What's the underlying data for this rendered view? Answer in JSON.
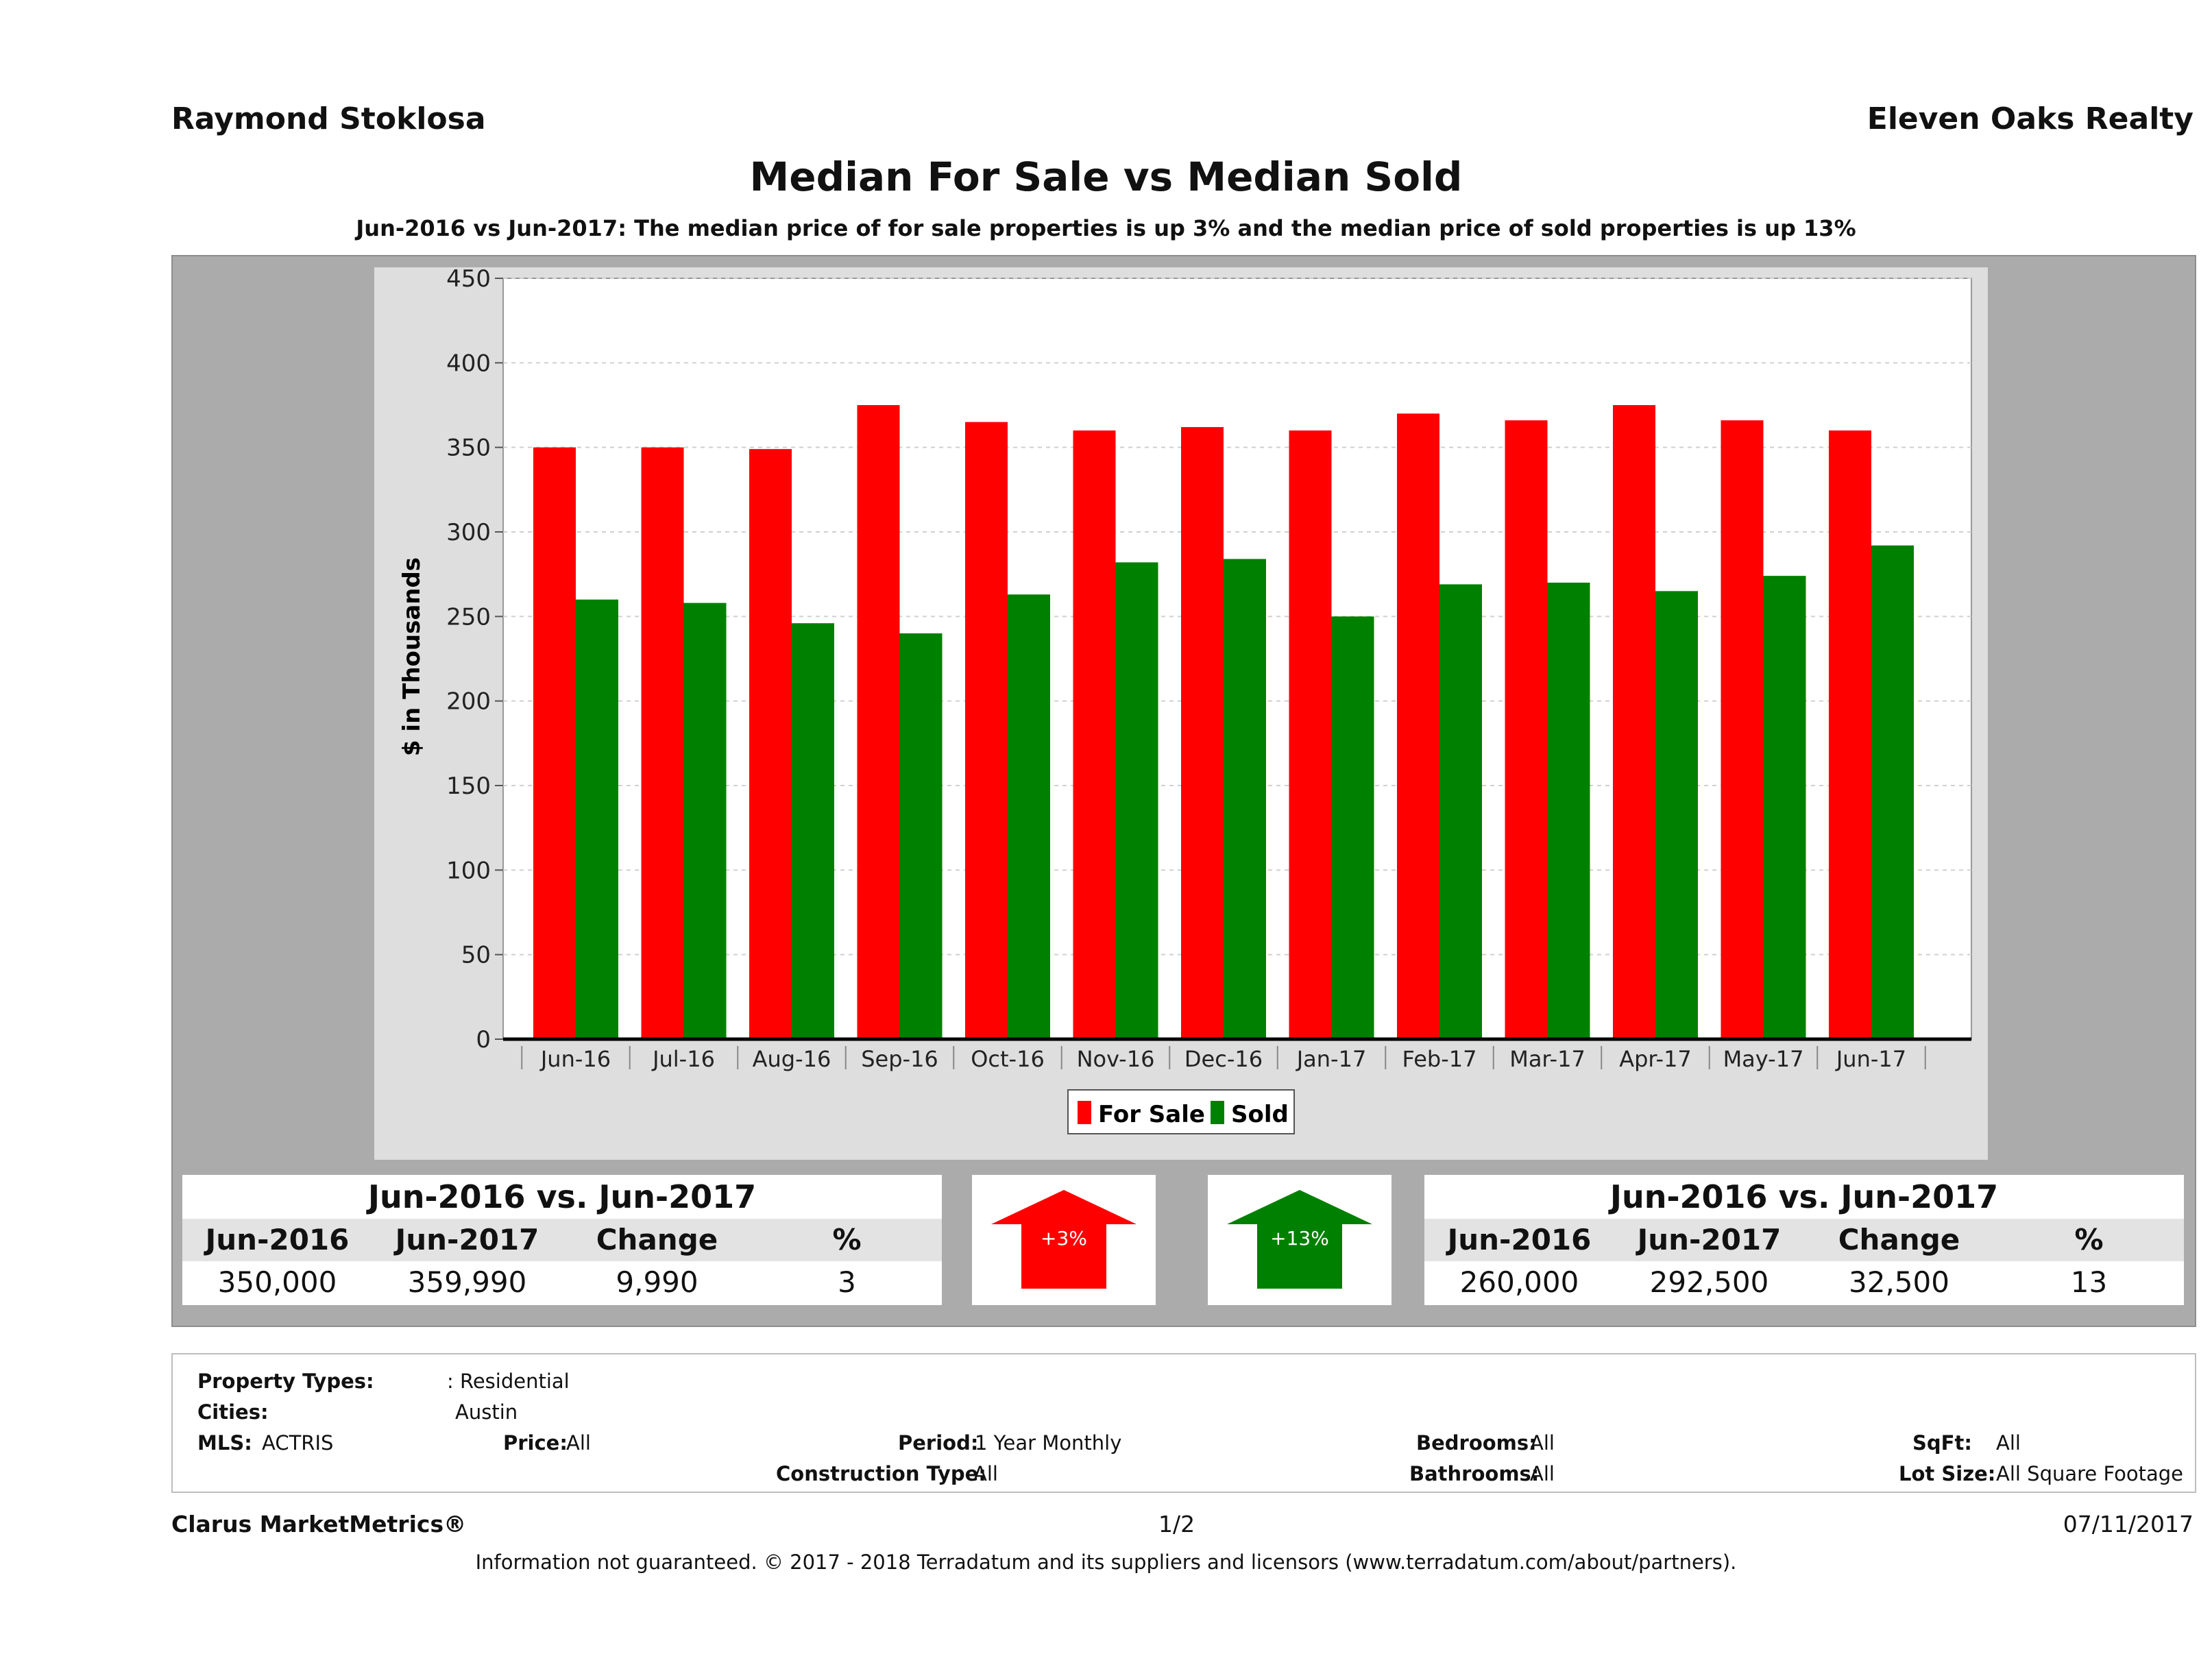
{
  "header": {
    "agent": "Raymond Stoklosa",
    "brokerage": "Eleven Oaks Realty",
    "title": "Median For Sale vs Median Sold",
    "subtitle": "Jun-2016 vs Jun-2017: The median price of for sale properties is up 3% and the median price of sold properties is up 13%"
  },
  "colors": {
    "for_sale": "#ff0000",
    "sold": "#008000",
    "panel": "#ababab",
    "chart_bg": "#dedede"
  },
  "chart_data": {
    "type": "bar",
    "ylabel": "$ in Thousands",
    "ylim": [
      0,
      450
    ],
    "yticks": [
      "0",
      "50",
      "100",
      "150",
      "200",
      "250",
      "300",
      "350",
      "400",
      "450"
    ],
    "categories": [
      "Jun-16",
      "Jul-16",
      "Aug-16",
      "Sep-16",
      "Oct-16",
      "Nov-16",
      "Dec-16",
      "Jan-17",
      "Feb-17",
      "Mar-17",
      "Apr-17",
      "May-17",
      "Jun-17"
    ],
    "series": [
      {
        "name": "For Sale",
        "values": [
          350,
          350,
          349,
          375,
          365,
          360,
          362,
          360,
          370,
          366,
          375,
          366,
          360
        ]
      },
      {
        "name": "Sold",
        "values": [
          260,
          258,
          246,
          240,
          263,
          282,
          284,
          250,
          269,
          270,
          265,
          274,
          292
        ]
      }
    ],
    "legend_position": "bottom-center",
    "grid": true
  },
  "stats_for_sale": {
    "heading": "Jun-2016 vs. Jun-2017",
    "columns": [
      "Jun-2016",
      "Jun-2017",
      "Change",
      "%"
    ],
    "values": [
      "350,000",
      "359,990",
      "9,990",
      "3"
    ],
    "arrow_label": "+3%"
  },
  "stats_sold": {
    "heading": "Jun-2016 vs. Jun-2017",
    "columns": [
      "Jun-2016",
      "Jun-2017",
      "Change",
      "%"
    ],
    "values": [
      "260,000",
      "292,500",
      "32,500",
      "13"
    ],
    "arrow_label": "+13%"
  },
  "criteria": {
    "property_types_label": "Property Types:",
    "property_types": ": Residential",
    "cities_label": "Cities:",
    "cities": "Austin",
    "mls_label": "MLS:",
    "mls": "ACTRIS",
    "price_label": "Price:",
    "price": "All",
    "period_label": "Period:",
    "period": "1 Year Monthly",
    "construction_label": "Construction Type:",
    "construction": "All",
    "bedrooms_label": "Bedrooms:",
    "bedrooms": "All",
    "bathrooms_label": "Bathrooms:",
    "bathrooms": "All",
    "sqft_label": "SqFt:",
    "sqft": "All",
    "lot_label": "Lot Size:",
    "lot": "All Square Footage"
  },
  "footer": {
    "brand": "Clarus MarketMetrics®",
    "page": "1/2",
    "date": "07/11/2017",
    "disclaimer": "Information not guaranteed. © 2017 - 2018 Terradatum and its suppliers and licensors (www.terradatum.com/about/partners)."
  }
}
